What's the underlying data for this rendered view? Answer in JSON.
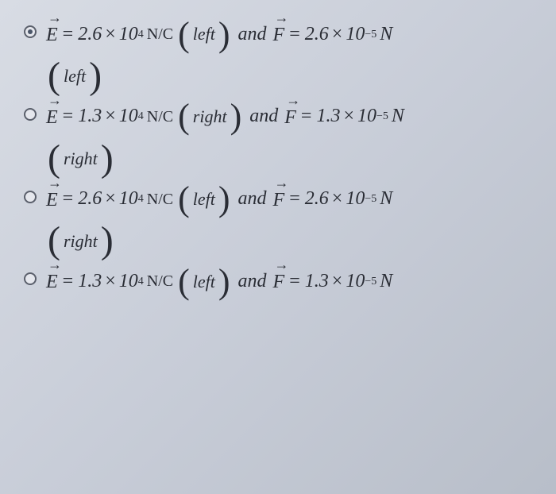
{
  "options": [
    {
      "selected": true,
      "E_coef": "2.6",
      "E_exp": "4",
      "E_dir": "left",
      "F_coef": "2.6",
      "F_exp": "−5",
      "line2_dir": "left"
    },
    {
      "selected": false,
      "E_coef": "1.3",
      "E_exp": "4",
      "E_dir": "right",
      "F_coef": "1.3",
      "F_exp": "−5",
      "line2_dir": "right"
    },
    {
      "selected": false,
      "E_coef": "2.6",
      "E_exp": "4",
      "E_dir": "left",
      "F_coef": "2.6",
      "F_exp": "−5",
      "line2_dir": "right"
    },
    {
      "selected": false,
      "E_coef": "1.3",
      "E_exp": "4",
      "E_dir": "left",
      "F_coef": "1.3",
      "F_exp": "−5",
      "line2_dir": null
    }
  ],
  "labels": {
    "E": "E",
    "F": "F",
    "eq": "=",
    "times": "×",
    "ten": "10",
    "N_over_C_top": "N",
    "N_over_C_bot": "C",
    "and": "and",
    "N": "N"
  },
  "colors": {
    "background": "#cdd1dc",
    "text": "#2a2d35",
    "radio_border": "#5a5f6b"
  }
}
